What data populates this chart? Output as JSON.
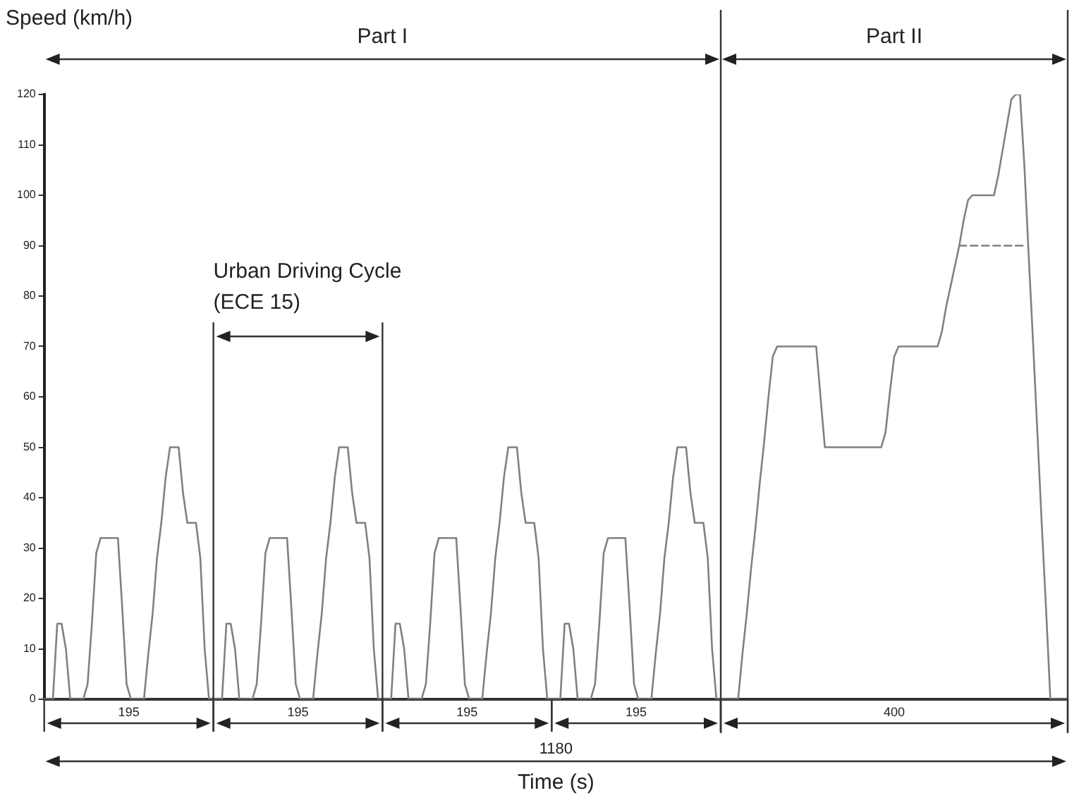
{
  "chart_data": {
    "type": "line",
    "xlabel": "Time (s)",
    "ylabel": "Speed (km/h)",
    "categories": [
      null,
      null,
      null,
      null,
      null,
      null,
      null,
      null,
      null,
      null,
      null,
      null,
      null,
      null,
      null,
      null,
      null,
      null,
      null,
      null,
      null,
      null,
      null,
      null,
      null,
      null,
      null,
      null,
      null,
      null,
      null,
      null,
      null,
      null,
      null,
      null,
      null,
      null,
      null,
      null,
      null,
      null,
      null,
      null,
      null,
      null,
      null,
      null,
      null,
      null,
      null,
      null,
      null,
      null,
      null,
      null,
      null,
      null,
      null,
      null,
      null,
      null,
      null,
      null,
      null,
      null,
      null,
      null,
      null,
      null,
      null,
      null,
      null,
      null,
      null,
      null,
      null,
      null,
      null,
      null,
      null,
      null,
      null,
      null,
      null,
      null,
      null,
      null,
      null,
      null,
      null,
      null,
      null,
      null,
      null,
      null,
      null,
      null,
      null,
      null,
      null,
      null,
      null,
      null,
      null,
      null,
      null,
      null,
      null,
      null,
      null,
      null,
      null,
      null,
      null,
      null,
      null,
      null,
      null,
      null,
      null,
      null,
      null,
      null,
      null,
      null,
      null,
      null,
      null,
      null,
      null,
      null,
      null,
      null,
      null,
      null,
      null,
      null,
      null,
      null,
      null,
      null,
      null,
      null,
      null,
      null,
      null,
      null,
      null,
      null,
      null,
      null,
      null,
      null,
      null,
      null,
      null,
      null,
      null,
      null,
      null,
      null,
      null,
      null,
      null,
      null,
      null,
      null,
      null,
      null,
      null,
      null,
      null,
      null,
      null,
      null,
      null,
      null,
      null,
      null,
      null,
      null,
      null,
      null,
      null,
      null,
      null,
      null,
      null,
      null,
      null,
      null,
      null,
      null,
      null,
      null,
      null,
      null,
      null,
      null,
      null,
      null,
      null,
      null,
      null,
      null,
      null,
      null,
      null,
      null,
      null,
      null,
      null,
      null,
      null,
      null,
      null,
      null,
      null,
      null,
      null,
      null,
      null,
      null,
      null,
      null,
      null,
      null,
      null,
      null,
      null,
      null,
      null,
      null,
      null,
      null,
      null
    ],
    "ylim": [
      0,
      120
    ],
    "yticks": [
      0,
      10,
      20,
      30,
      40,
      50,
      60,
      70,
      80,
      90,
      100,
      110,
      120
    ],
    "tick_labels": "y",
    "grid": false,
    "legend": false,
    "marker": "none",
    "series": [
      {
        "color": "#808080",
        "line_style": "solid",
        "values": [
          0,
          0,
          0,
          15,
          15,
          10,
          0,
          0,
          0,
          0,
          3,
          15,
          29,
          32,
          32,
          32,
          32,
          32,
          18,
          3,
          0,
          0,
          0,
          0,
          9,
          17,
          28,
          35,
          44,
          50,
          50,
          50,
          41,
          35,
          35,
          35,
          28,
          10,
          0,
          0,
          0,
          0,
          15,
          15,
          10,
          0,
          0,
          0,
          0,
          3,
          15,
          29,
          32,
          32,
          32,
          32,
          32,
          18,
          3,
          0,
          0,
          0,
          0,
          9,
          17,
          28,
          35,
          44,
          50,
          50,
          50,
          41,
          35,
          35,
          35,
          28,
          10,
          0,
          0,
          0,
          0,
          15,
          15,
          10,
          0,
          0,
          0,
          0,
          3,
          15,
          29,
          32,
          32,
          32,
          32,
          32,
          18,
          3,
          0,
          0,
          0,
          0,
          9,
          17,
          28,
          35,
          44,
          50,
          50,
          50,
          41,
          35,
          35,
          35,
          28,
          10,
          0,
          0,
          0,
          0,
          15,
          15,
          10,
          0,
          0,
          0,
          0,
          3,
          15,
          29,
          32,
          32,
          32,
          32,
          32,
          18,
          3,
          0,
          0,
          0,
          0,
          9,
          17,
          28,
          35,
          44,
          50,
          50,
          50,
          41,
          35,
          35,
          35,
          28,
          10,
          0,
          0,
          0,
          0,
          0,
          0,
          9,
          17,
          26,
          34,
          43,
          51,
          60,
          68,
          70,
          70,
          70,
          70,
          70,
          70,
          70,
          70,
          70,
          70,
          60,
          50,
          50,
          50,
          50,
          50,
          50,
          50,
          50,
          50,
          50,
          50,
          50,
          50,
          50,
          53,
          61,
          68,
          70,
          70,
          70,
          70,
          70,
          70,
          70,
          70,
          70,
          70,
          73,
          78,
          82,
          86,
          90,
          95,
          99,
          100,
          100,
          100,
          100,
          100,
          100,
          104,
          109,
          114,
          119,
          120,
          120,
          106,
          88,
          71,
          53,
          35,
          18,
          0,
          0,
          0,
          0,
          0
        ]
      },
      {
        "color": "#808080",
        "line_style": "dashed",
        "values": [
          null,
          null,
          null,
          null,
          null,
          null,
          null,
          null,
          null,
          null,
          null,
          null,
          null,
          null,
          null,
          null,
          null,
          null,
          null,
          null,
          null,
          null,
          null,
          null,
          null,
          null,
          null,
          null,
          null,
          null,
          null,
          null,
          null,
          null,
          null,
          null,
          null,
          null,
          null,
          null,
          null,
          null,
          null,
          null,
          null,
          null,
          null,
          null,
          null,
          null,
          null,
          null,
          null,
          null,
          null,
          null,
          null,
          null,
          null,
          null,
          null,
          null,
          null,
          null,
          null,
          null,
          null,
          null,
          null,
          null,
          null,
          null,
          null,
          null,
          null,
          null,
          null,
          null,
          null,
          null,
          null,
          null,
          null,
          null,
          null,
          null,
          null,
          null,
          null,
          null,
          null,
          null,
          null,
          null,
          null,
          null,
          null,
          null,
          null,
          null,
          null,
          null,
          null,
          null,
          null,
          null,
          null,
          null,
          null,
          null,
          null,
          null,
          null,
          null,
          null,
          null,
          null,
          null,
          null,
          null,
          null,
          null,
          null,
          null,
          null,
          null,
          null,
          null,
          null,
          null,
          null,
          null,
          null,
          null,
          null,
          null,
          null,
          null,
          null,
          null,
          null,
          null,
          null,
          null,
          null,
          null,
          null,
          null,
          null,
          null,
          null,
          null,
          null,
          null,
          null,
          null,
          null,
          null,
          null,
          null,
          null,
          null,
          null,
          null,
          null,
          null,
          null,
          null,
          null,
          null,
          null,
          null,
          null,
          null,
          null,
          null,
          null,
          null,
          null,
          null,
          null,
          null,
          null,
          null,
          null,
          null,
          null,
          null,
          null,
          null,
          null,
          null,
          null,
          null,
          null,
          null,
          null,
          null,
          null,
          null,
          null,
          null,
          null,
          null,
          null,
          null,
          null,
          null,
          null,
          null,
          null,
          90,
          90,
          90,
          90,
          90,
          90,
          90,
          90,
          90,
          90,
          90,
          90,
          90,
          90,
          90,
          90,
          null,
          null,
          null,
          null,
          null,
          null,
          null,
          null,
          null,
          null
        ]
      }
    ],
    "annotations": [
      "Part I",
      "Part II",
      "Urban Driving Cycle (ECE 15)",
      "195",
      "195",
      "195",
      "195",
      "400",
      "1180"
    ]
  }
}
